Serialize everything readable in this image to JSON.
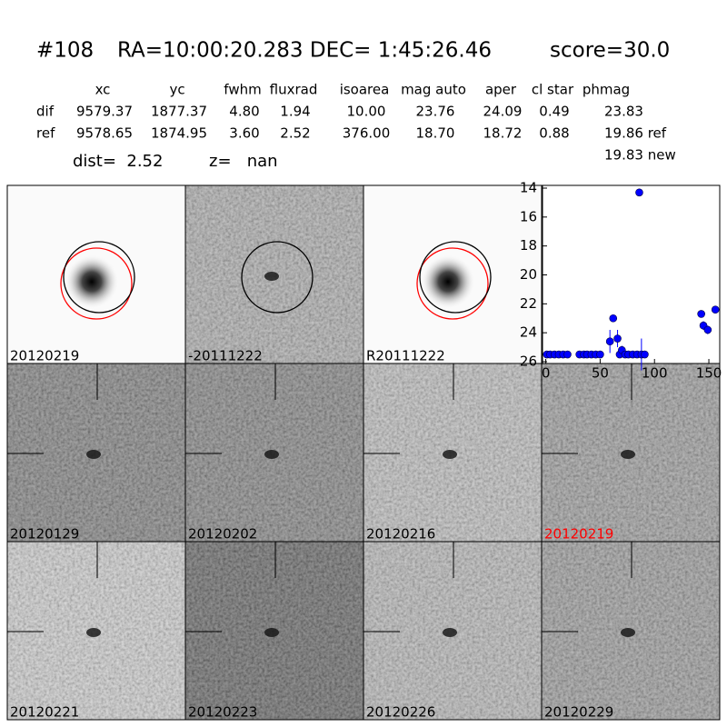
{
  "header": {
    "title": [
      "#108",
      "RA=10:00:20.283 DEC= 1:45:26.46",
      "score=30.0"
    ]
  },
  "table": {
    "columns": [
      "xc",
      "yc",
      "fwhm",
      "fluxrad",
      "isoarea",
      "mag auto",
      "aper",
      "cl star",
      "phmag"
    ],
    "rows": [
      {
        "label": "dif",
        "values": [
          "9579.37",
          "1877.37",
          "4.80",
          "1.94",
          "10.00",
          "23.76",
          "24.09",
          "0.49",
          "23.83"
        ]
      },
      {
        "label": "ref",
        "values": [
          "9578.65",
          "1874.95",
          "3.60",
          "2.52",
          "376.00",
          "18.70",
          "18.72",
          "0.88",
          "19.86 ref"
        ]
      }
    ],
    "extra": "19.83 new"
  },
  "summary": {
    "dist": "dist=  2.52",
    "z": "z=   nan"
  },
  "stamps": [
    {
      "label": "20120219"
    },
    {
      "label": "-20111222"
    },
    {
      "label": "R20111222"
    },
    {
      "label": "20120129"
    },
    {
      "label": "20120202"
    },
    {
      "label": "20120216"
    },
    {
      "label": "20120219",
      "label_color": "#ff0000"
    },
    {
      "label": "20120221"
    },
    {
      "label": "20120223"
    },
    {
      "label": "20120226"
    },
    {
      "label": "20120229"
    }
  ],
  "chart_data": {
    "type": "scatter",
    "color": "#0000ff",
    "x": [
      1,
      4,
      8,
      12,
      16,
      20,
      31,
      35,
      38,
      42,
      46,
      50,
      59,
      62,
      66,
      68,
      70,
      73,
      76,
      80,
      84,
      86,
      88,
      91,
      143,
      145,
      149,
      156
    ],
    "values": [
      25.5,
      25.5,
      25.5,
      25.5,
      25.5,
      25.5,
      25.5,
      25.5,
      25.5,
      25.5,
      25.5,
      25.5,
      24.6,
      23.0,
      24.4,
      25.5,
      25.2,
      25.5,
      25.5,
      25.5,
      25.5,
      14.3,
      25.5,
      25.5,
      22.7,
      23.5,
      23.8,
      22.4
    ],
    "errors": [
      null,
      null,
      null,
      null,
      null,
      null,
      null,
      null,
      null,
      null,
      null,
      null,
      0.8,
      0.2,
      0.6,
      null,
      0.3,
      null,
      null,
      null,
      null,
      null,
      1.1,
      null,
      null,
      0.3,
      0.3,
      0.2
    ],
    "xlim": [
      -3,
      160
    ],
    "ylim": [
      26,
      14
    ],
    "xticks": [
      0,
      50,
      100,
      150
    ],
    "yticks": [
      14,
      16,
      18,
      20,
      22,
      24,
      26
    ]
  }
}
